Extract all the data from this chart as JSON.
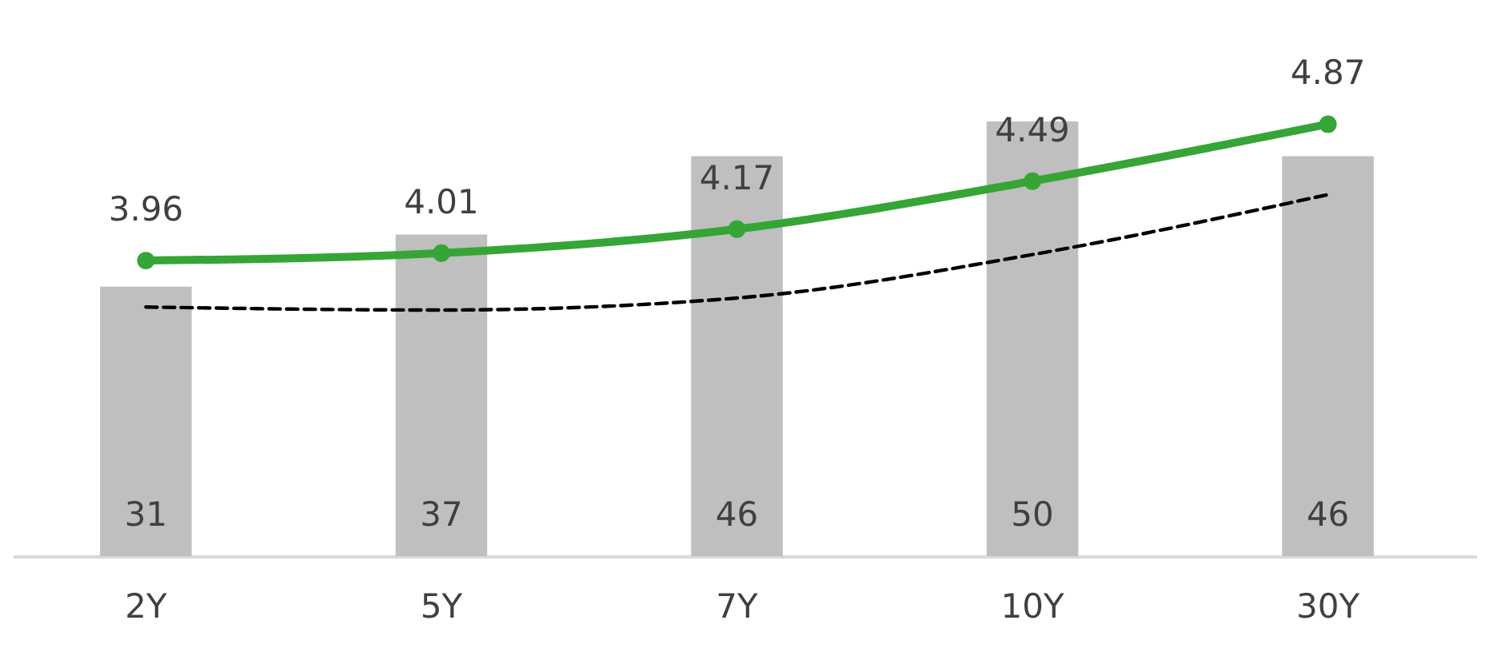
{
  "chart_data": {
    "type": "bar",
    "categories": [
      "2Y",
      "5Y",
      "7Y",
      "10Y",
      "30Y"
    ],
    "series": [
      {
        "color": "#bfbfbf",
        "values": [
          31,
          37,
          46,
          50,
          46
        ],
        "value_labels": [
          "31",
          "37",
          "46",
          "50",
          "46"
        ]
      },
      {
        "type": "line",
        "axis": "y2",
        "color": "#35a535",
        "marker": "circle",
        "line_style": "solid",
        "values": [
          3.96,
          4.01,
          4.17,
          4.49,
          4.87
        ],
        "value_labels": [
          "3.96",
          "4.01",
          "4.17",
          "4.49",
          "4.87"
        ]
      },
      {
        "type": "line",
        "axis": "y2",
        "color": "#000000",
        "marker": "none",
        "line_style": "dashed",
        "values": [
          3.65,
          3.63,
          3.71,
          4.0,
          4.4
        ]
      }
    ],
    "tick_labels": "x"
  }
}
